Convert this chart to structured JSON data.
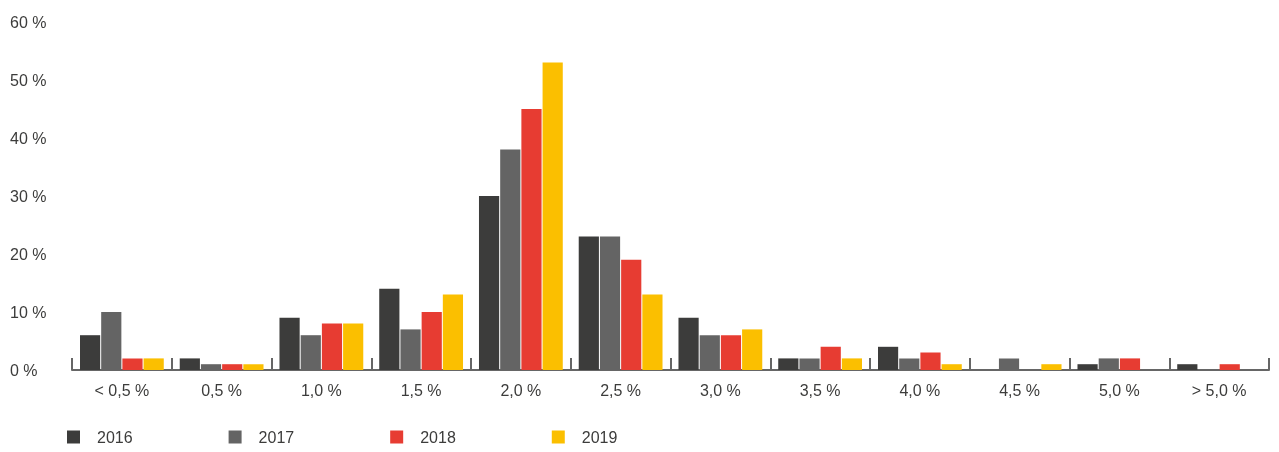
{
  "chart_data": {
    "type": "bar",
    "categories": [
      "< 0,5 %",
      "0,5 %",
      "1,0 %",
      "1,5 %",
      "2,0 %",
      "2,5 %",
      "3,0 %",
      "3,5 %",
      "4,0 %",
      "4,5 %",
      "5,0 %",
      "> 5,0 %"
    ],
    "series": [
      {
        "name": "2016",
        "color": "#3c3c3b",
        "values": [
          6,
          2,
          9,
          14,
          30,
          23,
          9,
          2,
          4,
          0,
          1,
          1
        ]
      },
      {
        "name": "2017",
        "color": "#646464",
        "values": [
          10,
          1,
          6,
          7,
          38,
          23,
          6,
          2,
          2,
          2,
          2,
          0
        ]
      },
      {
        "name": "2018",
        "color": "#e73c32",
        "values": [
          2,
          1,
          8,
          10,
          45,
          19,
          6,
          4,
          3,
          0,
          2,
          1
        ]
      },
      {
        "name": "2019",
        "color": "#fbbf00",
        "values": [
          2,
          1,
          8,
          13,
          53,
          13,
          7,
          2,
          1,
          1,
          0,
          0
        ]
      }
    ],
    "ylim": [
      0,
      60
    ],
    "yticks": [
      {
        "value": 0,
        "label": "0 %"
      },
      {
        "value": 10,
        "label": "10 %"
      },
      {
        "value": 20,
        "label": "20 %"
      },
      {
        "value": 30,
        "label": "30 %"
      },
      {
        "value": 40,
        "label": "40 %"
      },
      {
        "value": 50,
        "label": "50 %"
      },
      {
        "value": 60,
        "label": "60 %"
      }
    ],
    "grid": false,
    "legend": "bottom left"
  }
}
